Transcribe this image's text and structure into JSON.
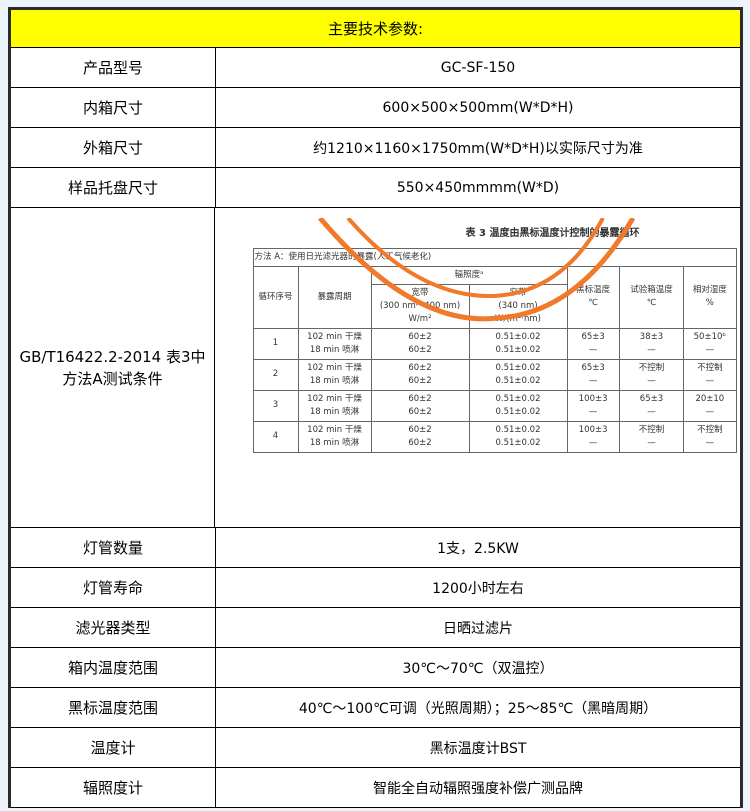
{
  "header": "主要技术参数:",
  "rows": [
    {
      "k": "产品型号",
      "v": "GC-SF-150"
    },
    {
      "k": "内箱尺寸",
      "v": "600×500×500mm(W*D*H)"
    },
    {
      "k": "外箱尺寸",
      "v": "约1210×1160×1750mm(W*D*H)以实际尺寸为准"
    },
    {
      "k": "样品托盘尺寸",
      "v": "550×450mmmm(W*D)"
    },
    {
      "k": "GB/T16422.2-2014 表3中方法A测试条件"
    },
    {
      "k": "灯管数量",
      "v": "1支，2.5KW"
    },
    {
      "k": "灯管寿命",
      "v": "1200小时左右"
    },
    {
      "k": "滤光器类型",
      "v": "日晒过滤片"
    },
    {
      "k": "箱内温度范围",
      "v": "30℃～70℃（双温控）"
    },
    {
      "k": "黑标温度范围",
      "v": "40℃～100℃可调（光照周期）；25～85℃（黑暗周期）"
    },
    {
      "k": "温度计",
      "v": "黑标温度计BST"
    },
    {
      "k": "辐照度计",
      "v": "智能全自动辐照强度补偿广测品牌"
    }
  ],
  "std": {
    "title": "表 3   温度由黑标温度计控制的暴露循环",
    "method": "方法 A：使用日光滤光器的暴露(人工气候老化)",
    "h_cycle": "循环序号",
    "h_period": "暴露周期",
    "h_irr": "辐照度ᵃ",
    "h_wide": "宽带",
    "h_wide_range": "(300 nm～400 nm)",
    "h_wide_unit": "W/m²",
    "h_narrow": "窄带",
    "h_narrow_range": "(340 nm)",
    "h_narrow_unit": "W/(m²·nm)",
    "h_bst": "黑标温度",
    "h_bst_unit": "℃",
    "h_chamber": "试验箱温度",
    "h_chamber_unit": "℃",
    "h_rh": "相对湿度",
    "h_rh_unit": "%",
    "cycles": [
      {
        "n": "1",
        "p1": "102 min 干燥",
        "p2": "18 min 喷淋",
        "w1": "60±2",
        "w2": "60±2",
        "n1": "0.51±0.02",
        "n2": "0.51±0.02",
        "b1": "65±3",
        "b2": "—",
        "c1": "38±3",
        "c2": "—",
        "r1": "50±10ᵇ",
        "r2": "—"
      },
      {
        "n": "2",
        "p1": "102 min 干燥",
        "p2": "18 min 喷淋",
        "w1": "60±2",
        "w2": "60±2",
        "n1": "0.51±0.02",
        "n2": "0.51±0.02",
        "b1": "65±3",
        "b2": "—",
        "c1": "不控制",
        "c2": "—",
        "r1": "不控制",
        "r2": "—"
      },
      {
        "n": "3",
        "p1": "102 min 干燥",
        "p2": "18 min 喷淋",
        "w1": "60±2",
        "w2": "60±2",
        "n1": "0.51±0.02",
        "n2": "0.51±0.02",
        "b1": "100±3",
        "b2": "—",
        "c1": "65±3",
        "c2": "—",
        "r1": "20±10",
        "r2": "—"
      },
      {
        "n": "4",
        "p1": "102 min 干燥",
        "p2": "18 min 喷淋",
        "w1": "60±2",
        "w2": "60±2",
        "n1": "0.51±0.02",
        "n2": "0.51±0.02",
        "b1": "100±3",
        "b2": "—",
        "c1": "不控制",
        "c2": "—",
        "r1": "不控制",
        "r2": "—"
      }
    ]
  },
  "colors": {
    "header_bg": "#ffff00",
    "arc": "#f07a2a"
  }
}
